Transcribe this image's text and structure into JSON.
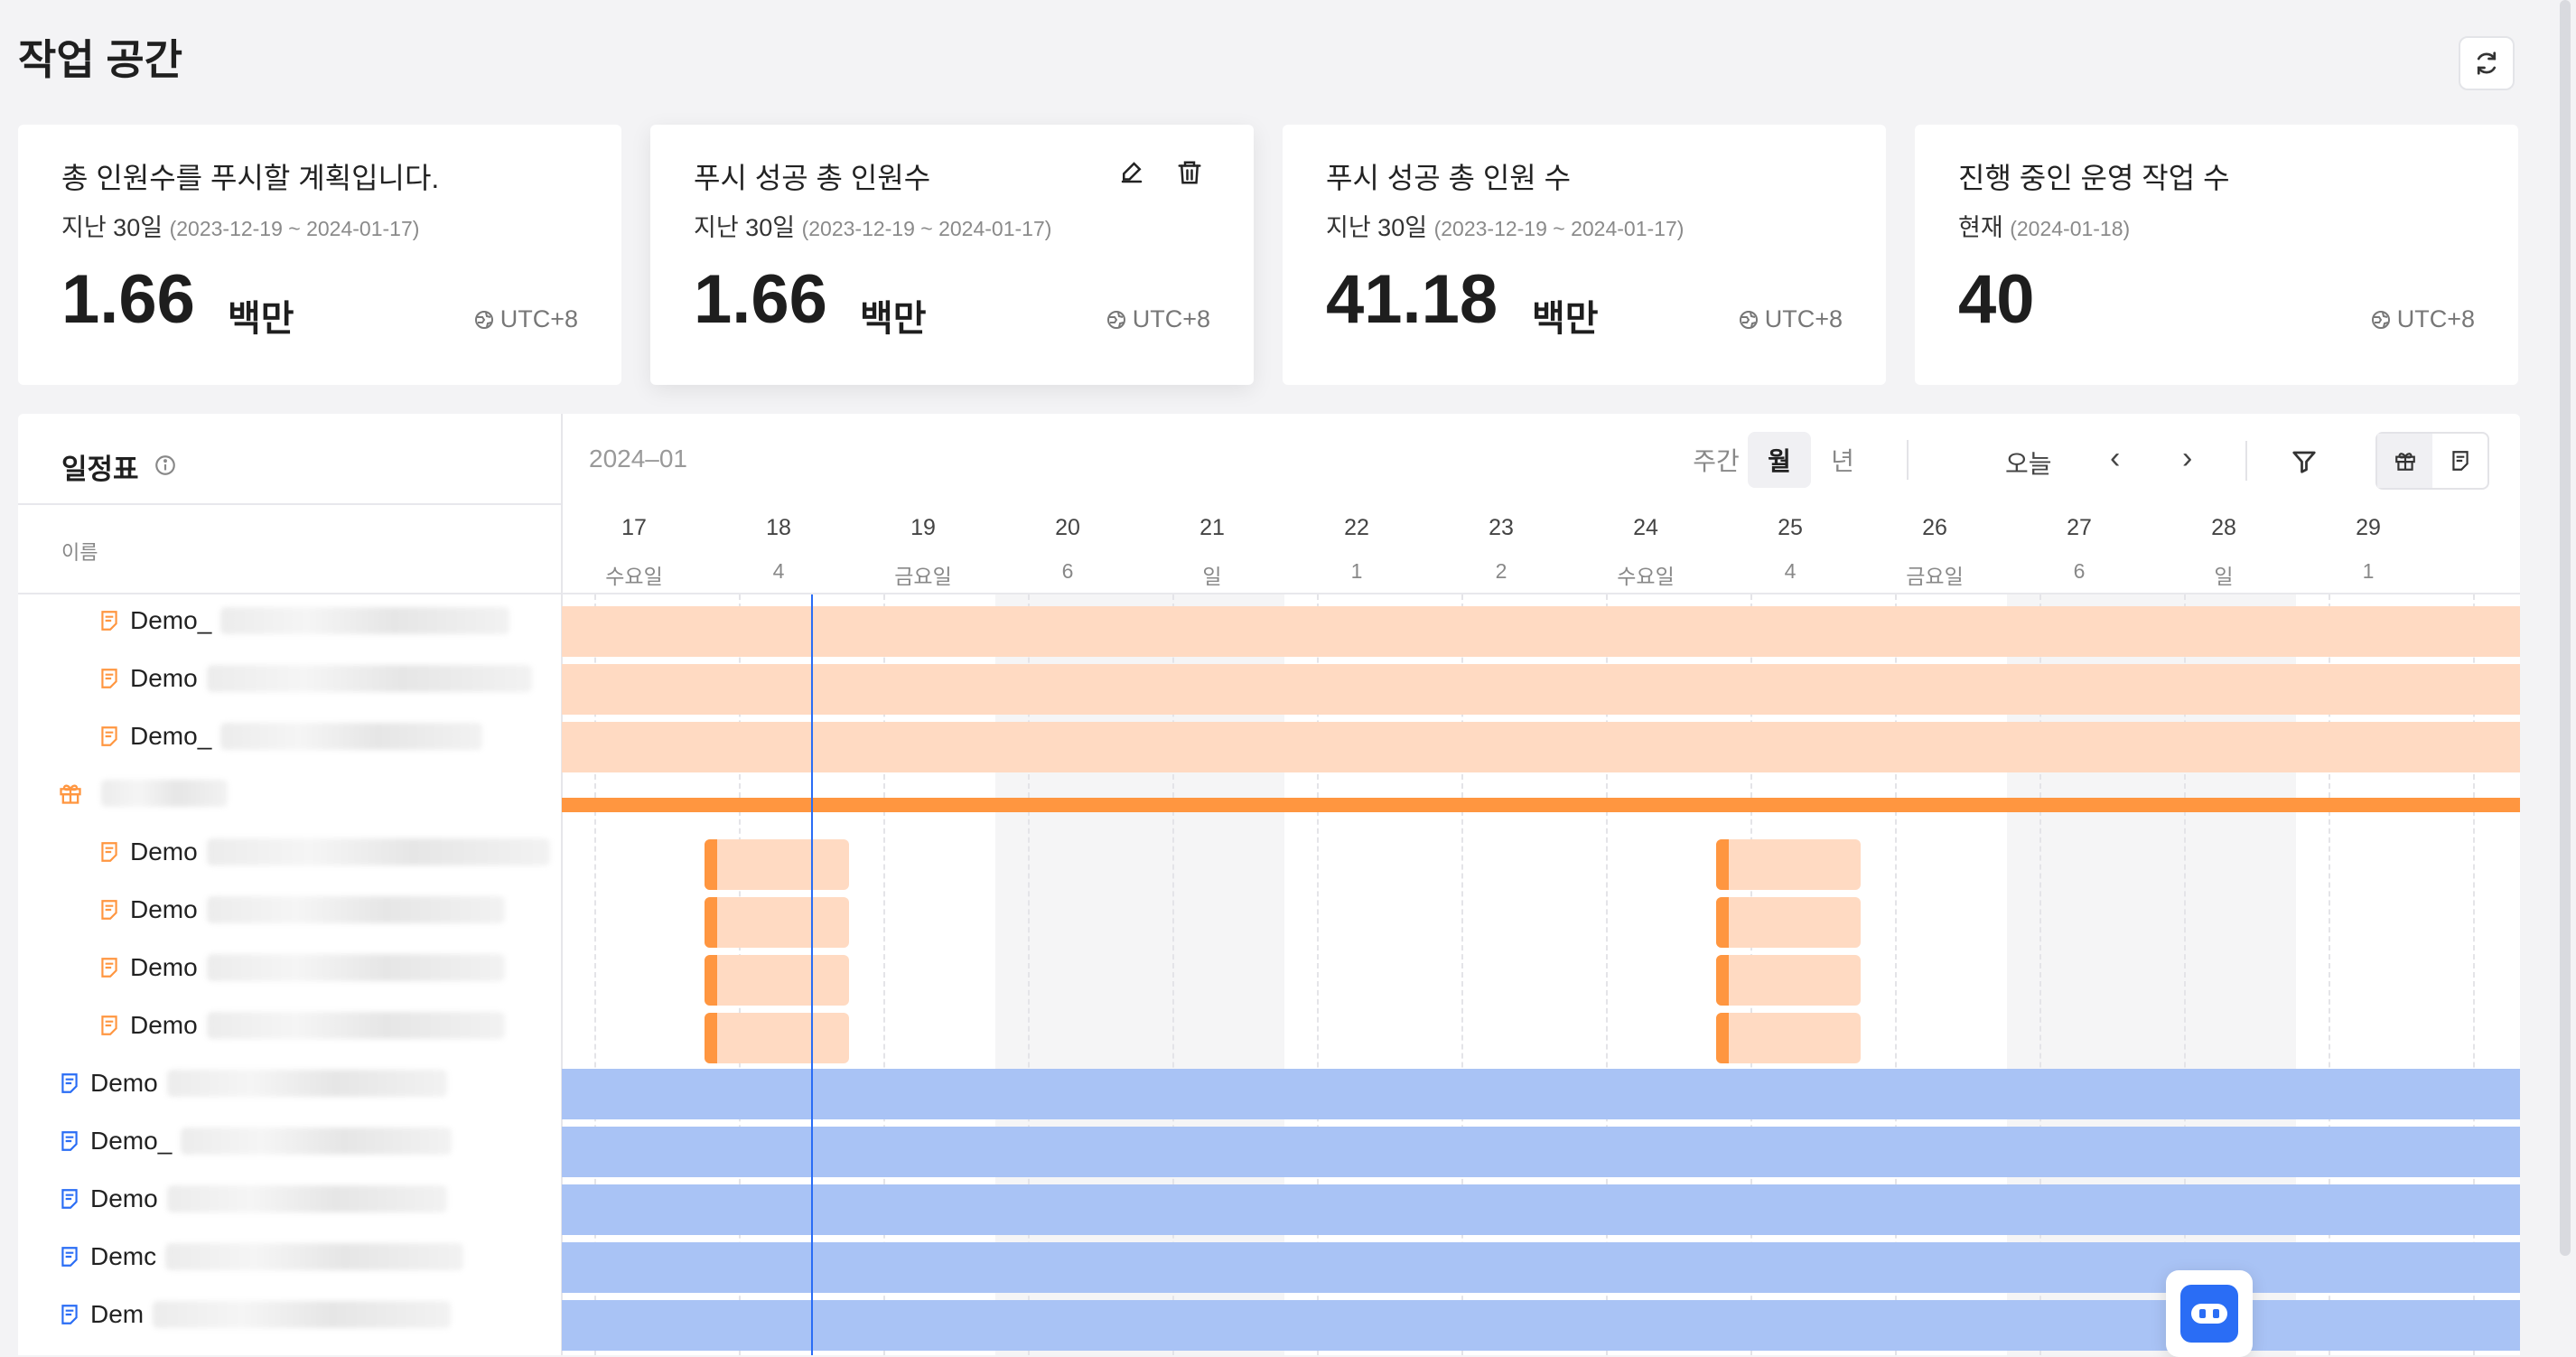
{
  "page": {
    "title": "작업 공간"
  },
  "colors": {
    "accent": "#ff9640",
    "blue": "#2a6df5",
    "peach": "#ffdac2",
    "blue_bar": "#a9c3f5"
  },
  "cards": [
    {
      "title": "총 인원수를 푸시할 계획입니다.",
      "period_label": "지난 30일",
      "period_range": "(2023-12-19 ~ 2024-01-17)",
      "value": "1.66",
      "unit": "백만",
      "timezone": "UTC+8"
    },
    {
      "title": "푸시 성공 총 인원수",
      "period_label": "지난 30일",
      "period_range": "(2023-12-19 ~ 2024-01-17)",
      "value": "1.66",
      "unit": "백만",
      "timezone": "UTC+8"
    },
    {
      "title": "푸시 성공 총 인원 수",
      "period_label": "지난 30일",
      "period_range": "(2023-12-19 ~ 2024-01-17)",
      "value": "41.18",
      "unit": "백만",
      "timezone": "UTC+8"
    },
    {
      "title": "진행 중인 운영 작업 수",
      "period_label": "현재",
      "period_range": "(2024-01-18)",
      "value": "40",
      "unit": "",
      "timezone": "UTC+8"
    }
  ],
  "schedule": {
    "title": "일정표",
    "column_name": "이름",
    "month": "2024–01",
    "view_options": [
      "주간",
      "월",
      "년"
    ],
    "active_view": "월",
    "today_label": "오늘",
    "prev_label": "‹",
    "next_label": "›",
    "days": [
      {
        "d": "17",
        "w": "수요일"
      },
      {
        "d": "18",
        "w": "4"
      },
      {
        "d": "19",
        "w": "금요일"
      },
      {
        "d": "20",
        "w": "6"
      },
      {
        "d": "21",
        "w": "일"
      },
      {
        "d": "22",
        "w": "1"
      },
      {
        "d": "23",
        "w": "2"
      },
      {
        "d": "24",
        "w": "수요일"
      },
      {
        "d": "25",
        "w": "4"
      },
      {
        "d": "26",
        "w": "금요일"
      },
      {
        "d": "27",
        "w": "6"
      },
      {
        "d": "28",
        "w": "일"
      },
      {
        "d": "29",
        "w": "1"
      }
    ],
    "rows": [
      {
        "label": "Demo_",
        "icon": "orange-doc",
        "indent": true
      },
      {
        "label": "Demo",
        "icon": "orange-doc",
        "indent": true
      },
      {
        "label": "Demo_",
        "icon": "orange-doc",
        "indent": true
      },
      {
        "label": "",
        "icon": "orange-gift",
        "indent": false
      },
      {
        "label": "Demo",
        "icon": "orange-doc",
        "indent": true
      },
      {
        "label": "Demo",
        "icon": "orange-doc",
        "indent": true
      },
      {
        "label": "Demo",
        "icon": "orange-doc",
        "indent": true
      },
      {
        "label": "Demo",
        "icon": "orange-doc",
        "indent": true
      },
      {
        "label": "Demo",
        "icon": "blue-doc",
        "indent": false
      },
      {
        "label": "Demo_",
        "icon": "blue-doc",
        "indent": false
      },
      {
        "label": "Demo",
        "icon": "blue-doc",
        "indent": false
      },
      {
        "label": "Demc",
        "icon": "blue-doc",
        "indent": false
      },
      {
        "label": "Dem",
        "icon": "blue-doc",
        "indent": false
      }
    ]
  }
}
